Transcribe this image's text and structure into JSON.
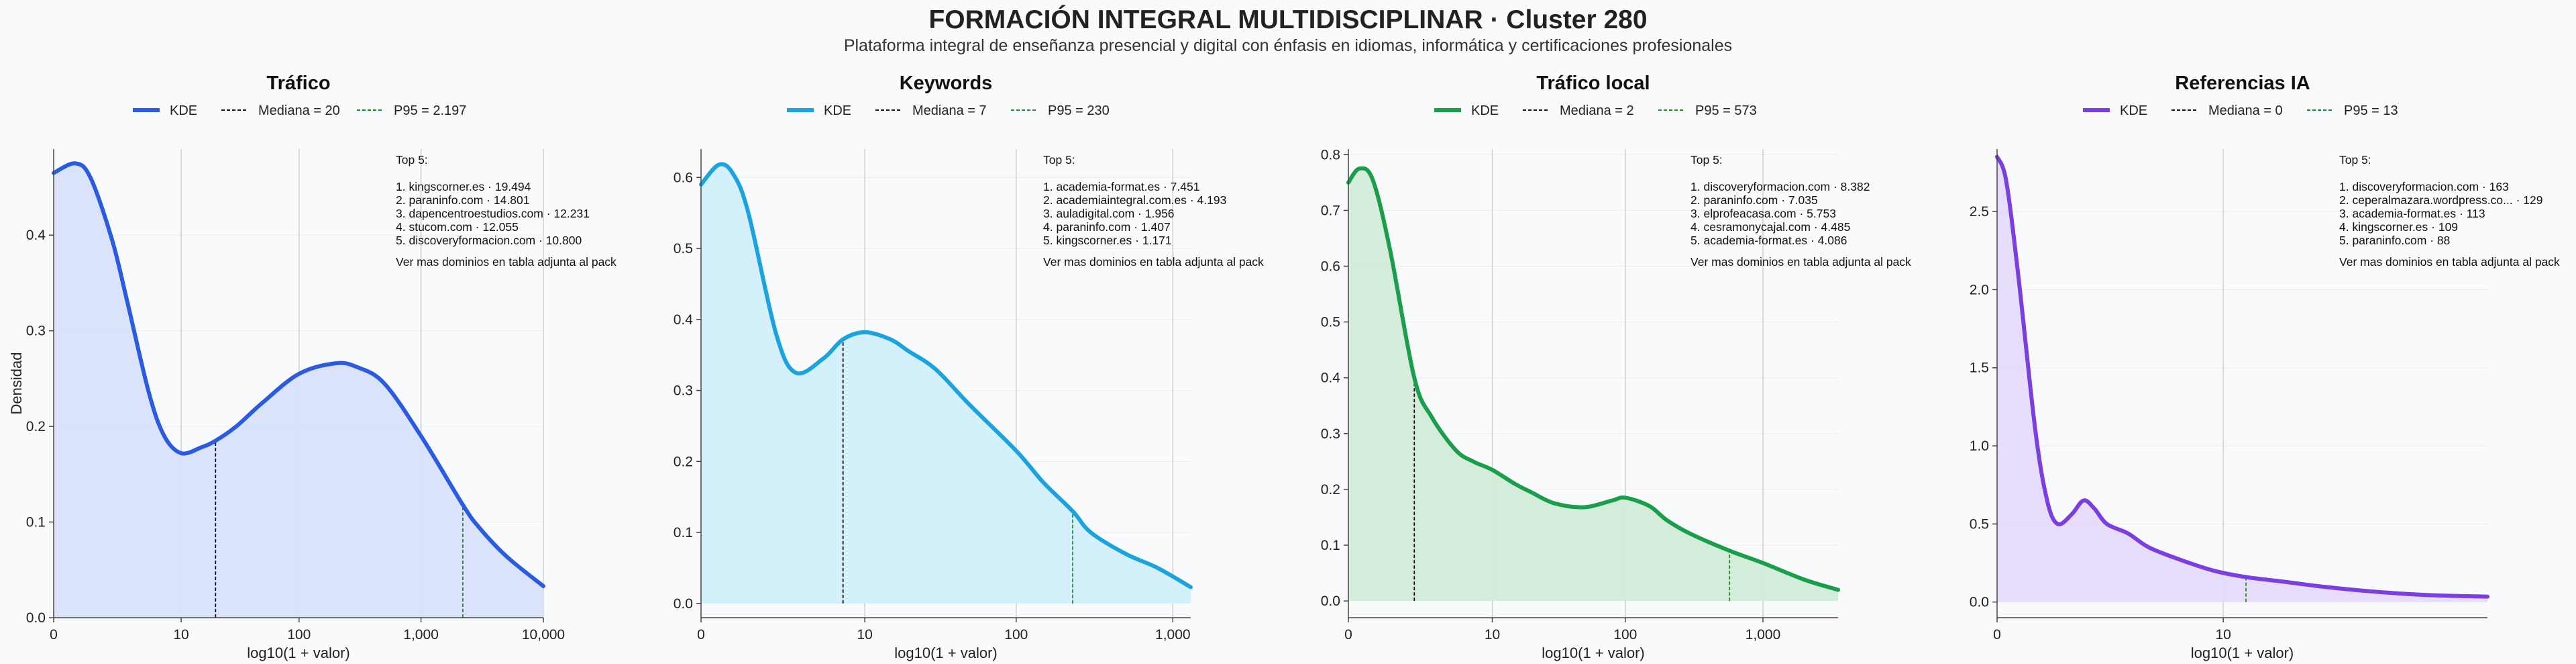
{
  "header": {
    "title": "FORMACIÓN INTEGRAL MULTIDISCIPLINAR · Cluster 280",
    "subtitle": "Plataforma integral de enseñanza presencial y digital con énfasis en idiomas, informática y certificaciones profesionales"
  },
  "colors": {
    "trafico": "#2b5be0",
    "keywords": "#1aa3df",
    "trafico_local": "#1b9e4b",
    "referencias_ia": "#7b3fe0",
    "median_line": "#111111",
    "p95_line": "#1e8a2e"
  },
  "chart_data": [
    {
      "type": "area",
      "title": "Tráfico",
      "color": "#2b5be0",
      "fill": "#d8e2fa",
      "legend": [
        "KDE",
        "Mediana = 20",
        "P95 = 2.197"
      ],
      "xlabel": "log10(1 + valor)",
      "ylabel": "Densidad",
      "x_max": 10000,
      "x_ticks": [
        0,
        10,
        100,
        1000,
        10000
      ],
      "x_tick_labels": [
        "0",
        "10",
        "100",
        "1,000",
        "10,000"
      ],
      "ylim": [
        0,
        0.49
      ],
      "y_ticks": [
        0,
        0.1,
        0.2,
        0.3,
        0.4
      ],
      "y_tick_labels": [
        "0.0",
        "0.1",
        "0.2",
        "0.3",
        "0.4"
      ],
      "median": 20,
      "p95": 2197,
      "x": [
        0,
        0.5,
        1,
        2,
        3,
        5,
        7,
        10,
        15,
        20,
        30,
        50,
        100,
        200,
        300,
        500,
        1000,
        2197,
        3000,
        5000,
        10000
      ],
      "y": [
        0.465,
        0.475,
        0.46,
        0.395,
        0.33,
        0.235,
        0.19,
        0.172,
        0.178,
        0.185,
        0.2,
        0.225,
        0.255,
        0.266,
        0.262,
        0.245,
        0.19,
        0.118,
        0.094,
        0.064,
        0.033
      ],
      "top5_header": "Top 5:",
      "top5": [
        "1. kingscorner.es · 19.494",
        "2. paraninfo.com · 14.801",
        "3. dapencentroestudios.com · 12.231",
        "4. stucom.com · 12.055",
        "5. discoveryformacion.com · 10.800"
      ],
      "top5_footer": "Ver mas dominios en tabla adjunta al pack"
    },
    {
      "type": "area",
      "title": "Keywords",
      "color": "#1aa3df",
      "fill": "#d2effb",
      "legend": [
        "KDE",
        "Mediana = 7",
        "P95 = 230"
      ],
      "xlabel": "log10(1 + valor)",
      "x_max": 1300,
      "x_ticks": [
        0,
        10,
        100,
        1000
      ],
      "x_tick_labels": [
        "0",
        "10",
        "100",
        "1,000"
      ],
      "ylim": [
        -0.02,
        0.64
      ],
      "y_ticks": [
        0,
        0.1,
        0.2,
        0.3,
        0.4,
        0.5,
        0.6
      ],
      "y_tick_labels": [
        "0.0",
        "0.1",
        "0.2",
        "0.3",
        "0.4",
        "0.5",
        "0.6"
      ],
      "median": 7,
      "p95": 230,
      "x": [
        0,
        0.3,
        0.6,
        1,
        2,
        3,
        5,
        7,
        10,
        15,
        20,
        30,
        50,
        100,
        150,
        230,
        300,
        500,
        800,
        1300
      ],
      "y": [
        0.59,
        0.618,
        0.605,
        0.55,
        0.38,
        0.325,
        0.345,
        0.372,
        0.382,
        0.372,
        0.355,
        0.33,
        0.28,
        0.215,
        0.17,
        0.13,
        0.1,
        0.07,
        0.05,
        0.023
      ],
      "top5_header": "Top 5:",
      "top5": [
        "1. academia-format.es · 7.451",
        "2. academiaintegral.com.es · 4.193",
        "3. auladigital.com · 1.956",
        "4. paraninfo.com · 1.407",
        "5. kingscorner.es · 1.171"
      ],
      "top5_footer": "Ver mas dominios en tabla adjunta al pack"
    },
    {
      "type": "area",
      "title": "Tráfico local",
      "color": "#1b9e4b",
      "fill": "#d2ecd8",
      "legend": [
        "KDE",
        "Mediana = 2",
        "P95 = 573"
      ],
      "xlabel": "log10(1 + valor)",
      "x_max": 3500,
      "x_ticks": [
        0,
        10,
        100,
        1000
      ],
      "x_tick_labels": [
        "0",
        "10",
        "100",
        "1,000"
      ],
      "ylim": [
        -0.03,
        0.81
      ],
      "y_ticks": [
        0,
        0.1,
        0.2,
        0.3,
        0.4,
        0.5,
        0.6,
        0.7,
        0.8
      ],
      "y_tick_labels": [
        "0.0",
        "0.1",
        "0.2",
        "0.3",
        "0.4",
        "0.5",
        "0.6",
        "0.7",
        "0.8"
      ],
      "median": 2,
      "p95": 573,
      "x": [
        0,
        0.2,
        0.5,
        1,
        2,
        3,
        5,
        7,
        10,
        15,
        20,
        30,
        50,
        80,
        100,
        150,
        200,
        300,
        573,
        1000,
        2000,
        3500
      ],
      "y": [
        0.75,
        0.775,
        0.755,
        0.63,
        0.4,
        0.33,
        0.27,
        0.25,
        0.235,
        0.21,
        0.195,
        0.175,
        0.168,
        0.18,
        0.185,
        0.17,
        0.145,
        0.12,
        0.09,
        0.068,
        0.038,
        0.02
      ],
      "top5_header": "Top 5:",
      "top5": [
        "1. discoveryformacion.com · 8.382",
        "2. paraninfo.com · 7.035",
        "3. elprofeacasa.com · 5.753",
        "4. cesramonycajal.com · 4.485",
        "5. academia-format.es · 4.086"
      ],
      "top5_footer": "Ver mas dominios en tabla adjunta al pack"
    },
    {
      "type": "area",
      "title": "Referencias IA",
      "color": "#7b3fe0",
      "fill": "#e6dbfa",
      "legend": [
        "KDE",
        "Mediana = 0",
        "P95 = 13"
      ],
      "xlabel": "log10(1 + valor)",
      "x_max": 180,
      "x_ticks": [
        0,
        10
      ],
      "x_tick_labels": [
        "0",
        "10"
      ],
      "ylim": [
        -0.1,
        2.9
      ],
      "y_ticks": [
        0,
        0.5,
        1.0,
        1.5,
        2.0,
        2.5
      ],
      "y_tick_labels": [
        "0.0",
        "0.5",
        "1.0",
        "1.5",
        "2.0",
        "2.5"
      ],
      "median": 0,
      "p95": 13,
      "x": [
        0,
        0.1,
        0.25,
        0.5,
        0.7,
        0.9,
        1.2,
        1.5,
        1.8,
        2.2,
        3,
        4,
        6,
        9,
        13,
        20,
        30,
        50,
        80,
        120,
        180
      ],
      "y": [
        2.85,
        2.7,
        2.1,
        1.1,
        0.65,
        0.5,
        0.56,
        0.65,
        0.6,
        0.5,
        0.44,
        0.35,
        0.27,
        0.2,
        0.16,
        0.13,
        0.1,
        0.07,
        0.05,
        0.04,
        0.035
      ],
      "top5_header": "Top 5:",
      "top5": [
        "1. discoveryformacion.com · 163",
        "2. ceperalmazara.wordpress.co... · 129",
        "3. academia-format.es · 113",
        "4. kingscorner.es · 109",
        "5. paraninfo.com · 88"
      ],
      "top5_footer": "Ver mas dominios en tabla adjunta al pack"
    }
  ]
}
